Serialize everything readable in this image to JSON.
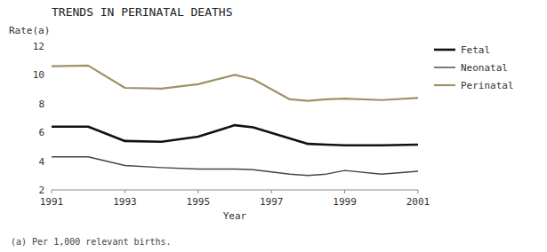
{
  "chart_data": {
    "type": "line",
    "title": "TRENDS IN PERINATAL DEATHS",
    "ylabel": "Rate(a)",
    "xlabel": "Year",
    "annotations": [
      "(a) Per 1,000 relevant births."
    ],
    "series": [
      {
        "name": "Fetal",
        "color": "#111111",
        "x": [
          1991,
          1992,
          1993,
          1994,
          1995,
          1996,
          1996.5,
          1998,
          1998.5,
          1999,
          2000,
          2001
        ],
        "values": [
          6.4,
          6.4,
          5.4,
          5.35,
          5.7,
          6.5,
          6.35,
          5.2,
          5.15,
          5.1,
          5.1,
          5.15
        ]
      },
      {
        "name": "Neonatal",
        "color": "#444444",
        "x": [
          1991,
          1992,
          1993,
          1994,
          1995,
          1996,
          1996.5,
          1997.5,
          1998,
          1998.5,
          1999,
          2000,
          2001
        ],
        "values": [
          4.3,
          4.3,
          3.7,
          3.55,
          3.45,
          3.45,
          3.4,
          3.1,
          3.0,
          3.1,
          3.35,
          3.1,
          3.3
        ]
      },
      {
        "name": "Perinatal",
        "color": "#9e9268",
        "x": [
          1991,
          1992,
          1993,
          1994,
          1995,
          1996,
          1996.5,
          1997.5,
          1998,
          1998.5,
          1999,
          2000,
          2001
        ],
        "values": [
          10.6,
          10.65,
          9.1,
          9.05,
          9.35,
          10.0,
          9.7,
          8.3,
          8.2,
          8.3,
          8.35,
          8.25,
          8.4
        ]
      }
    ],
    "xlim": [
      1991,
      2001
    ],
    "xticks": [
      1991,
      1993,
      1995,
      1997,
      1999,
      2001
    ],
    "ylim": [
      2,
      12
    ],
    "yticks": [
      2,
      4,
      6,
      8,
      10,
      12
    ],
    "grid": false,
    "legend": "right"
  }
}
